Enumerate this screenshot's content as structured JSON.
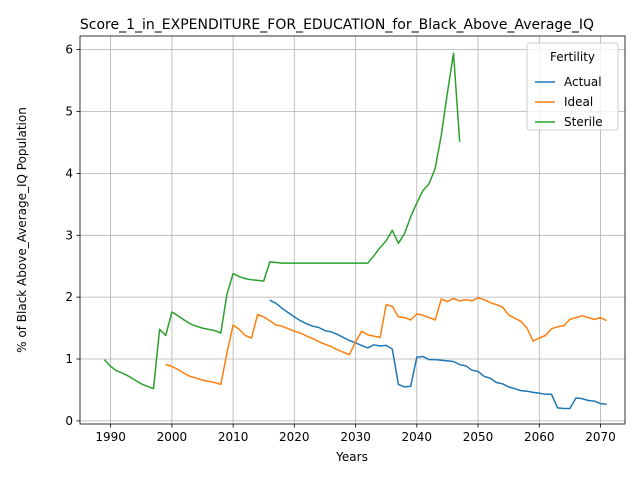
{
  "chart_data": {
    "type": "line",
    "title": "Score_1_in_EXPENDITURE_FOR_EDUCATION_for_Black_Above_Average_IQ",
    "xlabel": "Years",
    "ylabel": "% of Black Above_Average_IQ Population",
    "xlim": [
      1985,
      2074
    ],
    "ylim": [
      -0.05,
      6.22
    ],
    "xticks": [
      1990,
      2000,
      2010,
      2020,
      2030,
      2040,
      2050,
      2060,
      2070
    ],
    "yticks": [
      0,
      1,
      2,
      3,
      4,
      5,
      6
    ],
    "grid": true,
    "legend": {
      "title": "Fertility",
      "placement": "top-right"
    },
    "series": [
      {
        "name": "Actual",
        "color": "#1f77b4",
        "points": [
          [
            2016,
            1.95
          ],
          [
            2017,
            1.9
          ],
          [
            2018,
            1.82
          ],
          [
            2019,
            1.75
          ],
          [
            2020,
            1.68
          ],
          [
            2021,
            1.62
          ],
          [
            2022,
            1.57
          ],
          [
            2023,
            1.53
          ],
          [
            2024,
            1.51
          ],
          [
            2025,
            1.46
          ],
          [
            2026,
            1.44
          ],
          [
            2027,
            1.4
          ],
          [
            2028,
            1.35
          ],
          [
            2029,
            1.3
          ],
          [
            2030,
            1.26
          ],
          [
            2031,
            1.22
          ],
          [
            2032,
            1.18
          ],
          [
            2033,
            1.23
          ],
          [
            2034,
            1.21
          ],
          [
            2035,
            1.22
          ],
          [
            2036,
            1.16
          ],
          [
            2037,
            0.59
          ],
          [
            2038,
            0.55
          ],
          [
            2039,
            0.56
          ],
          [
            2040,
            1.03
          ],
          [
            2041,
            1.04
          ],
          [
            2042,
            0.99
          ],
          [
            2043,
            0.99
          ],
          [
            2044,
            0.98
          ],
          [
            2045,
            0.97
          ],
          [
            2046,
            0.96
          ],
          [
            2047,
            0.91
          ],
          [
            2048,
            0.89
          ],
          [
            2049,
            0.82
          ],
          [
            2050,
            0.8
          ],
          [
            2051,
            0.72
          ],
          [
            2052,
            0.69
          ],
          [
            2053,
            0.62
          ],
          [
            2054,
            0.6
          ],
          [
            2055,
            0.55
          ],
          [
            2056,
            0.52
          ],
          [
            2057,
            0.49
          ],
          [
            2058,
            0.48
          ],
          [
            2059,
            0.46
          ],
          [
            2060,
            0.45
          ],
          [
            2061,
            0.43
          ],
          [
            2062,
            0.43
          ],
          [
            2063,
            0.21
          ],
          [
            2064,
            0.2
          ],
          [
            2065,
            0.2
          ],
          [
            2066,
            0.37
          ],
          [
            2067,
            0.36
          ],
          [
            2068,
            0.33
          ],
          [
            2069,
            0.32
          ],
          [
            2070,
            0.28
          ],
          [
            2071,
            0.27
          ]
        ]
      },
      {
        "name": "Ideal",
        "color": "#ff7f0e",
        "points": [
          [
            1999,
            0.91
          ],
          [
            2000,
            0.88
          ],
          [
            2001,
            0.83
          ],
          [
            2002,
            0.77
          ],
          [
            2003,
            0.72
          ],
          [
            2004,
            0.69
          ],
          [
            2005,
            0.66
          ],
          [
            2006,
            0.64
          ],
          [
            2007,
            0.62
          ],
          [
            2008,
            0.59
          ],
          [
            2009,
            1.1
          ],
          [
            2010,
            1.55
          ],
          [
            2011,
            1.48
          ],
          [
            2012,
            1.38
          ],
          [
            2013,
            1.34
          ],
          [
            2014,
            1.72
          ],
          [
            2015,
            1.68
          ],
          [
            2016,
            1.62
          ],
          [
            2017,
            1.55
          ],
          [
            2018,
            1.53
          ],
          [
            2019,
            1.49
          ],
          [
            2020,
            1.45
          ],
          [
            2021,
            1.42
          ],
          [
            2022,
            1.37
          ],
          [
            2023,
            1.33
          ],
          [
            2024,
            1.28
          ],
          [
            2025,
            1.24
          ],
          [
            2026,
            1.2
          ],
          [
            2027,
            1.15
          ],
          [
            2028,
            1.11
          ],
          [
            2029,
            1.07
          ],
          [
            2030,
            1.28
          ],
          [
            2031,
            1.45
          ],
          [
            2032,
            1.39
          ],
          [
            2033,
            1.37
          ],
          [
            2034,
            1.35
          ],
          [
            2035,
            1.88
          ],
          [
            2036,
            1.85
          ],
          [
            2037,
            1.68
          ],
          [
            2038,
            1.67
          ],
          [
            2039,
            1.63
          ],
          [
            2040,
            1.73
          ],
          [
            2041,
            1.71
          ],
          [
            2042,
            1.67
          ],
          [
            2043,
            1.63
          ],
          [
            2044,
            1.97
          ],
          [
            2045,
            1.93
          ],
          [
            2046,
            1.98
          ],
          [
            2047,
            1.94
          ],
          [
            2048,
            1.96
          ],
          [
            2049,
            1.94
          ],
          [
            2050,
            1.99
          ],
          [
            2051,
            1.96
          ],
          [
            2052,
            1.91
          ],
          [
            2053,
            1.88
          ],
          [
            2054,
            1.84
          ],
          [
            2055,
            1.71
          ],
          [
            2056,
            1.66
          ],
          [
            2057,
            1.61
          ],
          [
            2058,
            1.5
          ],
          [
            2059,
            1.29
          ],
          [
            2060,
            1.34
          ],
          [
            2061,
            1.38
          ],
          [
            2062,
            1.49
          ],
          [
            2063,
            1.52
          ],
          [
            2064,
            1.54
          ],
          [
            2065,
            1.64
          ],
          [
            2066,
            1.67
          ],
          [
            2067,
            1.7
          ],
          [
            2068,
            1.67
          ],
          [
            2069,
            1.64
          ],
          [
            2070,
            1.67
          ],
          [
            2071,
            1.62
          ]
        ]
      },
      {
        "name": "Sterile",
        "color": "#2ca02c",
        "points": [
          [
            1989,
            0.99
          ],
          [
            1990,
            0.88
          ],
          [
            1991,
            0.81
          ],
          [
            1992,
            0.77
          ],
          [
            1993,
            0.72
          ],
          [
            1994,
            0.66
          ],
          [
            1995,
            0.6
          ],
          [
            1996,
            0.56
          ],
          [
            1997,
            0.52
          ],
          [
            1998,
            1.48
          ],
          [
            1999,
            1.38
          ],
          [
            2000,
            1.76
          ],
          [
            2001,
            1.7
          ],
          [
            2002,
            1.63
          ],
          [
            2003,
            1.57
          ],
          [
            2004,
            1.53
          ],
          [
            2005,
            1.5
          ],
          [
            2006,
            1.48
          ],
          [
            2007,
            1.46
          ],
          [
            2008,
            1.42
          ],
          [
            2009,
            2.05
          ],
          [
            2010,
            2.38
          ],
          [
            2011,
            2.33
          ],
          [
            2012,
            2.3
          ],
          [
            2013,
            2.28
          ],
          [
            2014,
            2.27
          ],
          [
            2015,
            2.26
          ],
          [
            2016,
            2.57
          ],
          [
            2017,
            2.56
          ],
          [
            2018,
            2.55
          ],
          [
            2019,
            2.55
          ],
          [
            2020,
            2.55
          ],
          [
            2021,
            2.55
          ],
          [
            2022,
            2.55
          ],
          [
            2023,
            2.55
          ],
          [
            2024,
            2.55
          ],
          [
            2025,
            2.55
          ],
          [
            2026,
            2.55
          ],
          [
            2027,
            2.55
          ],
          [
            2028,
            2.55
          ],
          [
            2029,
            2.55
          ],
          [
            2030,
            2.55
          ],
          [
            2031,
            2.55
          ],
          [
            2032,
            2.55
          ],
          [
            2033,
            2.67
          ],
          [
            2034,
            2.8
          ],
          [
            2035,
            2.91
          ],
          [
            2036,
            3.08
          ],
          [
            2037,
            2.87
          ],
          [
            2038,
            3.03
          ],
          [
            2039,
            3.3
          ],
          [
            2040,
            3.52
          ],
          [
            2041,
            3.72
          ],
          [
            2042,
            3.83
          ],
          [
            2043,
            4.08
          ],
          [
            2044,
            4.62
          ],
          [
            2045,
            5.3
          ],
          [
            2046,
            5.94
          ],
          [
            2047,
            4.51
          ]
        ]
      }
    ]
  }
}
